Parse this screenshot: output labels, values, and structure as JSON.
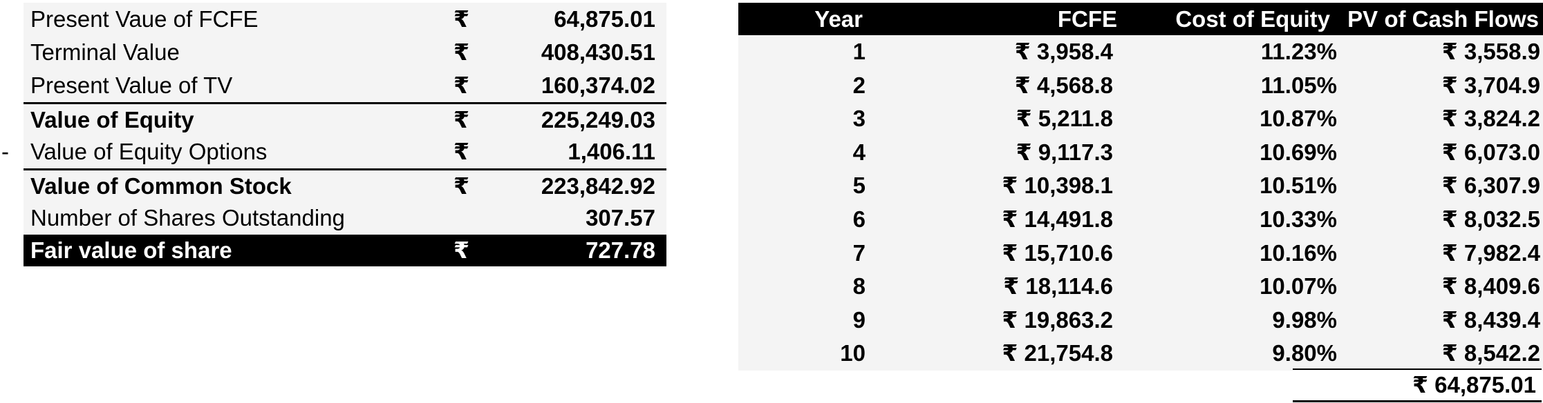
{
  "summary": {
    "currency_symbol": "₹",
    "minus_sign": "-",
    "rows": [
      {
        "label": "Present Vaue of FCFE",
        "value": "64,875.01"
      },
      {
        "label": "Terminal Value",
        "value": "408,430.51"
      },
      {
        "label": "Present Value of TV",
        "value": "160,374.02"
      },
      {
        "label": "Value of Equity",
        "value": "225,249.03"
      },
      {
        "label": "Value of Equity Options",
        "value": "1,406.11"
      },
      {
        "label": "Value of Common Stock",
        "value": "223,842.92"
      },
      {
        "label": "Number of Shares Outstanding",
        "value": "307.57"
      },
      {
        "label": "Fair value of share",
        "value": "727.78"
      }
    ]
  },
  "cash_flows": {
    "headers": {
      "year": "Year",
      "fcfe": "FCFE",
      "cost_of_equity": "Cost of Equity",
      "pv": "PV of Cash Flows"
    },
    "rows": [
      {
        "year": "1",
        "fcfe": "₹ 3,958.4",
        "coe": "11.23%",
        "pv": "₹ 3,558.9"
      },
      {
        "year": "2",
        "fcfe": "₹ 4,568.8",
        "coe": "11.05%",
        "pv": "₹ 3,704.9"
      },
      {
        "year": "3",
        "fcfe": "₹ 5,211.8",
        "coe": "10.87%",
        "pv": "₹ 3,824.2"
      },
      {
        "year": "4",
        "fcfe": "₹ 9,117.3",
        "coe": "10.69%",
        "pv": "₹ 6,073.0"
      },
      {
        "year": "5",
        "fcfe": "₹ 10,398.1",
        "coe": "10.51%",
        "pv": "₹ 6,307.9"
      },
      {
        "year": "6",
        "fcfe": "₹ 14,491.8",
        "coe": "10.33%",
        "pv": "₹ 8,032.5"
      },
      {
        "year": "7",
        "fcfe": "₹ 15,710.6",
        "coe": "10.16%",
        "pv": "₹ 7,982.4"
      },
      {
        "year": "8",
        "fcfe": "₹ 18,114.6",
        "coe": "10.07%",
        "pv": "₹ 8,409.6"
      },
      {
        "year": "9",
        "fcfe": "₹ 19,863.2",
        "coe": "9.98%",
        "pv": "₹ 8,439.4"
      },
      {
        "year": "10",
        "fcfe": "₹ 21,754.8",
        "coe": "9.80%",
        "pv": "₹ 8,542.2"
      }
    ],
    "total": "₹ 64,875.01"
  }
}
